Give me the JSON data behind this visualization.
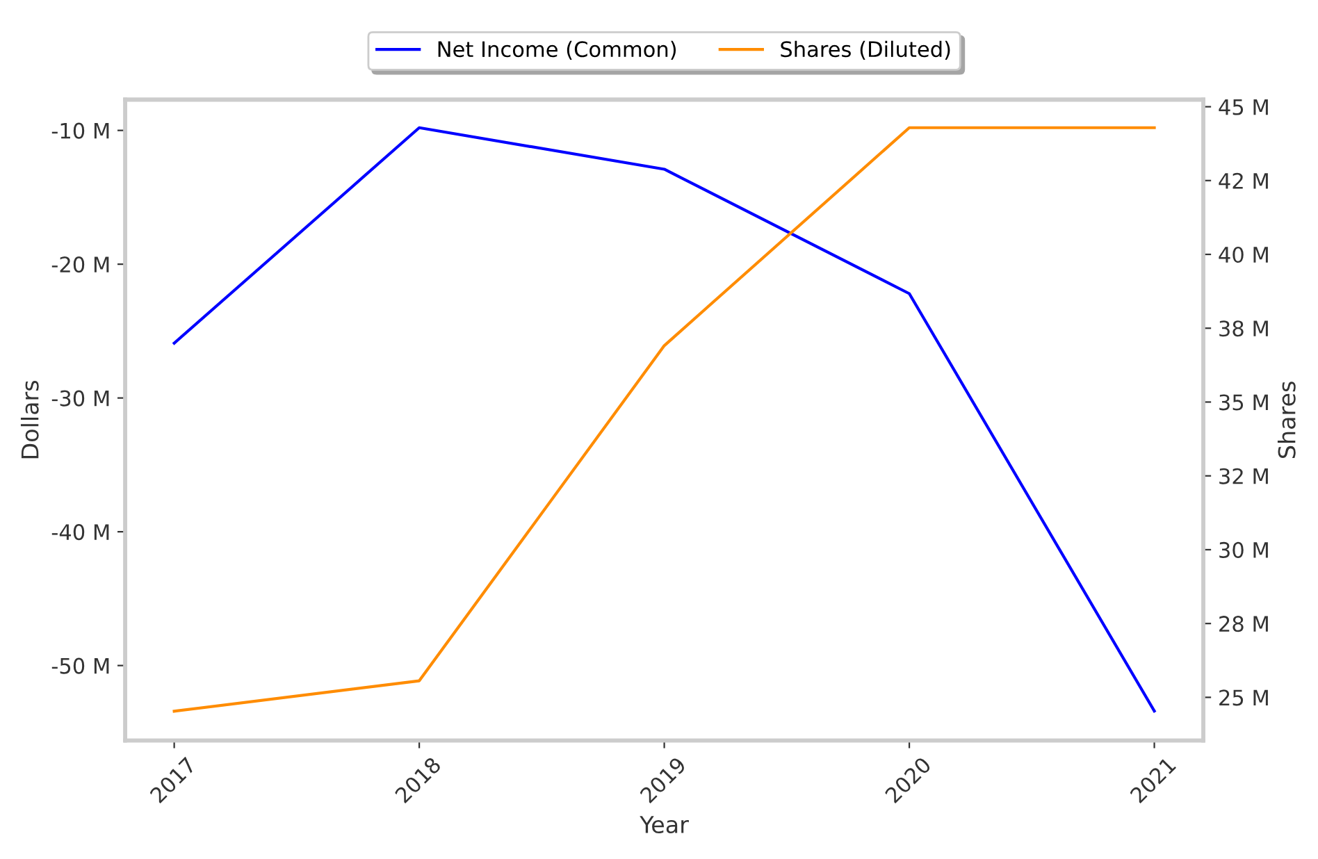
{
  "chart_data": {
    "type": "line",
    "xlabel": "Year",
    "ylabel": "Dollars",
    "y2label": "Shares",
    "x": [
      2017,
      2018,
      2019,
      2020,
      2021
    ],
    "xlim": [
      2016.8,
      2021.2
    ],
    "xticks": [
      2017,
      2018,
      2019,
      2020,
      2021
    ],
    "ylim": [
      -55.6,
      -7.7
    ],
    "yticks": [
      {
        "value": -50,
        "label": "-50 M"
      },
      {
        "value": -40,
        "label": "-40 M"
      },
      {
        "value": -30,
        "label": "-30 M"
      },
      {
        "value": -20,
        "label": "-20 M"
      },
      {
        "value": -10,
        "label": "-10 M"
      }
    ],
    "y2lim": [
      23.54,
      45.24
    ],
    "y2ticks": [
      {
        "value": 25,
        "label": "25 M"
      },
      {
        "value": 27.5,
        "label": "28 M"
      },
      {
        "value": 30,
        "label": "30 M"
      },
      {
        "value": 32.5,
        "label": "32 M"
      },
      {
        "value": 35,
        "label": "35 M"
      },
      {
        "value": 37.5,
        "label": "38 M"
      },
      {
        "value": 40,
        "label": "40 M"
      },
      {
        "value": 42.5,
        "label": "42 M"
      },
      {
        "value": 45,
        "label": "45 M"
      }
    ],
    "series": [
      {
        "name": "Net Income (Common)",
        "color": "#0000ff",
        "values": [
          -25.9,
          -9.8,
          -12.9,
          -22.2,
          -53.4
        ]
      },
      {
        "name": "Shares (Diluted)",
        "color": "#ff8c00",
        "axis": "y2",
        "values": [
          24.53,
          25.56,
          36.91,
          44.29,
          44.29
        ]
      }
    ],
    "grid": false,
    "legend": "top",
    "marker": "none",
    "line_style": "solid"
  }
}
